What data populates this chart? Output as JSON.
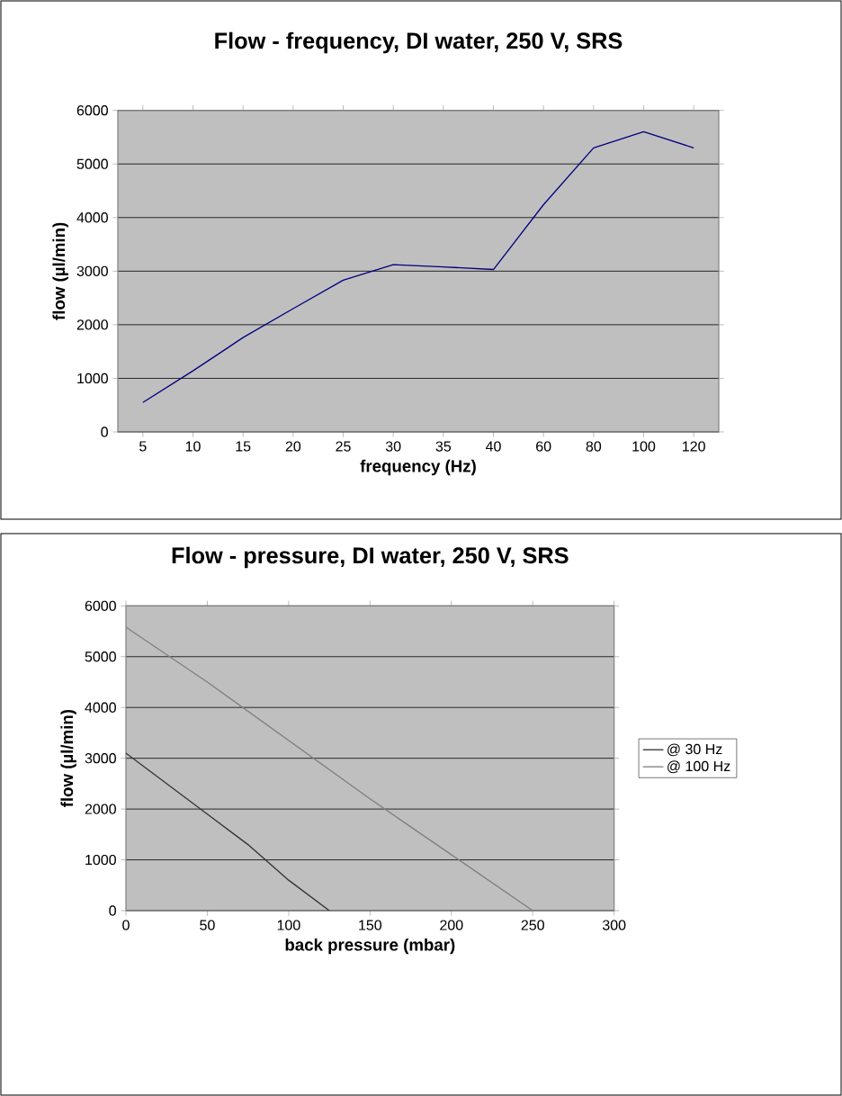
{
  "chart_data": [
    {
      "type": "line",
      "title": "Flow - frequency, DI water, 250 V, SRS",
      "xlabel": "frequency (Hz)",
      "ylabel": "flow (µl/min)",
      "categories": [
        "5",
        "10",
        "15",
        "20",
        "25",
        "30",
        "35",
        "40",
        "60",
        "80",
        "100",
        "120"
      ],
      "series": [
        {
          "color": "#000080",
          "values": [
            550,
            1140,
            1760,
            2300,
            2830,
            3120,
            3080,
            3030,
            4240,
            5300,
            5600,
            5300
          ]
        }
      ],
      "ylim": [
        0,
        6000
      ],
      "yticks": [
        0,
        1000,
        2000,
        3000,
        4000,
        5000,
        6000
      ],
      "grid": "y",
      "marker": "none"
    },
    {
      "type": "line",
      "title": "Flow - pressure, DI water, 250 V, SRS",
      "xlabel": "back pressure (mbar)",
      "ylabel": "flow (µl/min)",
      "series": [
        {
          "name": "@ 30 Hz",
          "color": "#333333",
          "x": [
            0,
            25,
            50,
            75,
            100,
            125
          ],
          "values": [
            3100,
            2500,
            1900,
            1300,
            600,
            0
          ]
        },
        {
          "name": "@ 100 Hz",
          "color": "#808080",
          "x": [
            0,
            50,
            100,
            150,
            175,
            200,
            250
          ],
          "values": [
            5580,
            4500,
            3350,
            2200,
            1650,
            1100,
            0
          ]
        }
      ],
      "xlim": [
        0,
        300
      ],
      "xticks": [
        0,
        50,
        100,
        150,
        200,
        250,
        300
      ],
      "ylim": [
        0,
        6000
      ],
      "yticks": [
        0,
        1000,
        2000,
        3000,
        4000,
        5000,
        6000
      ],
      "grid": "y",
      "legend": "right",
      "marker": "none"
    }
  ]
}
